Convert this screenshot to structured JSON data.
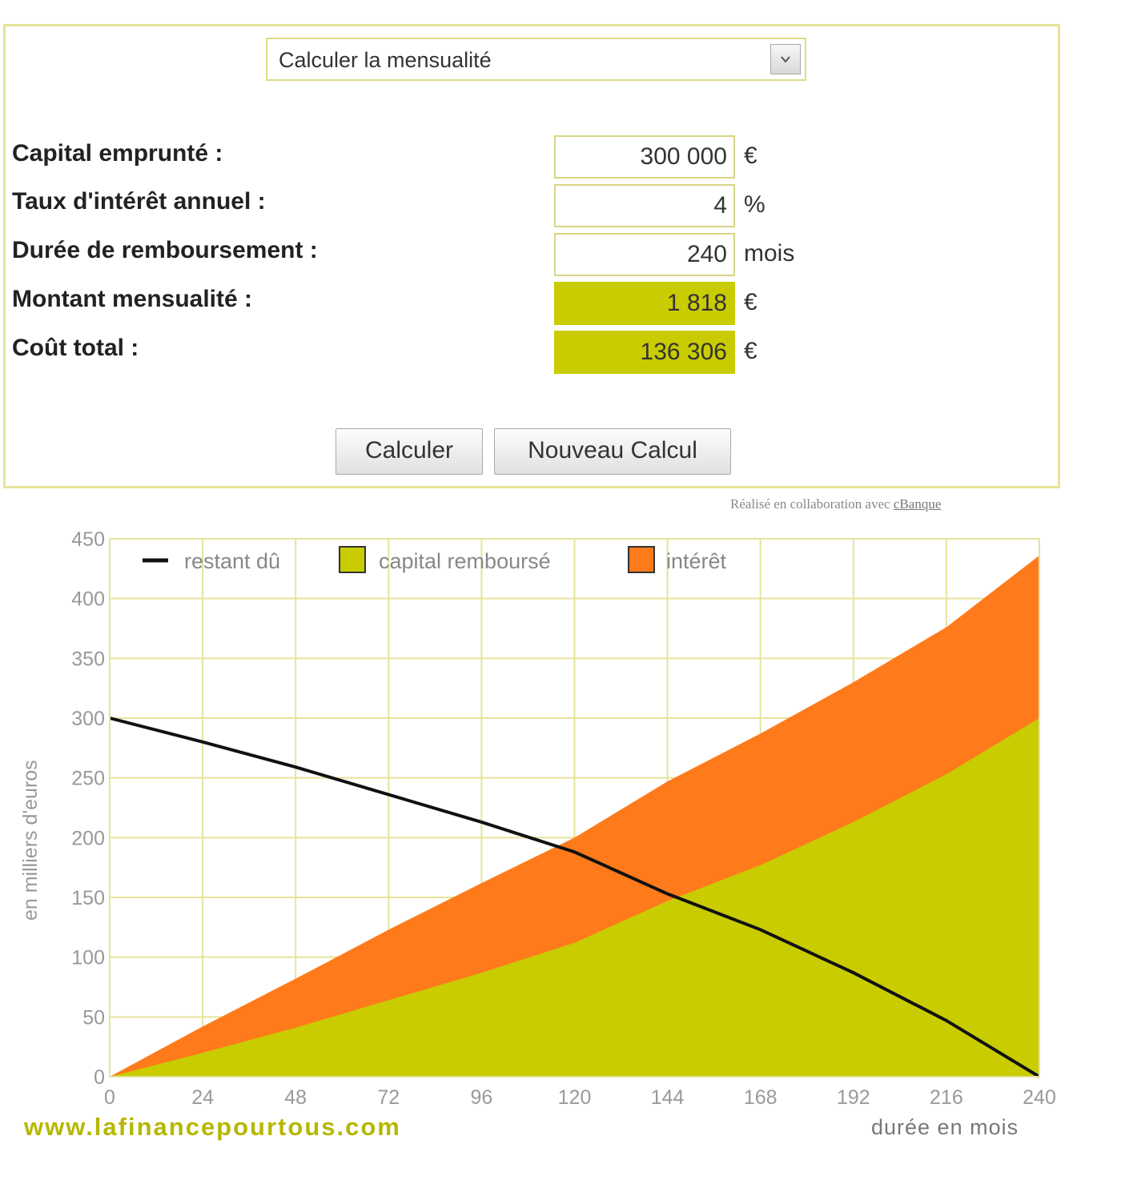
{
  "form": {
    "mode_select": {
      "selected": "Calculer la mensualité"
    },
    "fields": [
      {
        "label": "Capital emprunté :",
        "value": "300 000",
        "unit": "€"
      },
      {
        "label": "Taux d'intérêt annuel :",
        "value": "4",
        "unit": "%"
      },
      {
        "label": "Durée de remboursement :",
        "value": "240",
        "unit": "mois"
      },
      {
        "label": "Montant mensualité :",
        "value": "1 818",
        "unit": "€"
      },
      {
        "label": "Coût total :",
        "value": "136 306",
        "unit": "€"
      }
    ],
    "buttons": {
      "calculate": "Calculer",
      "new_calc": "Nouveau Calcul"
    },
    "credit": {
      "text": "Réalisé en collaboration avec",
      "link": "cBanque"
    }
  },
  "colors": {
    "capital": "#c8cc00",
    "interest": "#ff7a1a",
    "remaining": "#111111",
    "grid": "#e6e39a",
    "border": "#e6e39a"
  },
  "chart_data": {
    "type": "area",
    "xlabel": "durée en mois",
    "ylabel": "en milliers d'euros",
    "xlim": [
      0,
      240
    ],
    "ylim": [
      0,
      450
    ],
    "x_ticks": [
      0,
      24,
      48,
      72,
      96,
      120,
      144,
      168,
      192,
      216,
      240
    ],
    "y_ticks": [
      0,
      50,
      100,
      150,
      200,
      250,
      300,
      350,
      400,
      450
    ],
    "grid": true,
    "legend_position": "top-left",
    "x": [
      0,
      24,
      48,
      72,
      96,
      120,
      144,
      168,
      192,
      216,
      240
    ],
    "series": [
      {
        "name": "restant dû",
        "kind": "line",
        "values": [
          300,
          280,
          259,
          236,
          213,
          188,
          153,
          123,
          87,
          47,
          0
        ]
      },
      {
        "name": "capital remboursé",
        "kind": "area",
        "values": [
          0,
          20,
          41,
          64,
          87,
          112,
          147,
          177,
          213,
          253,
          300
        ]
      },
      {
        "name": "intérêt",
        "kind": "area-stacked",
        "values": [
          0,
          22,
          41,
          59,
          75,
          88,
          100,
          110,
          117,
          123,
          136
        ]
      }
    ]
  },
  "footer": {
    "site": "www.lafinancepourtous.com"
  }
}
